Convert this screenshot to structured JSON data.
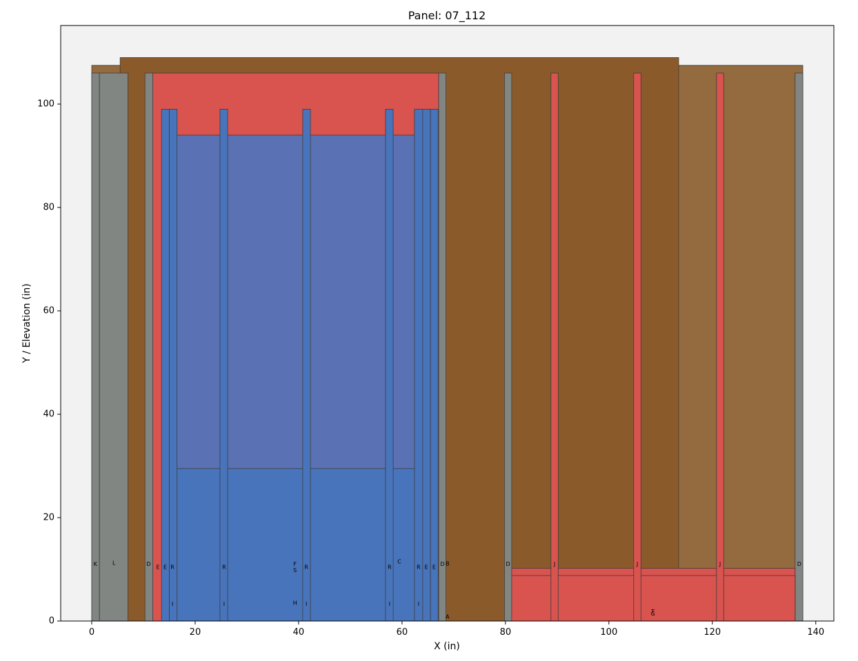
{
  "chart_data": {
    "type": "rectangles",
    "title": "Panel: 07_112",
    "xlabel": "X (in)",
    "ylabel": "Y / Elevation (in)",
    "xlim": [
      -6,
      143.5
    ],
    "ylim": [
      0,
      115.2
    ],
    "xticks": [
      0,
      20,
      40,
      60,
      80,
      100,
      120,
      140
    ],
    "yticks": [
      0,
      20,
      40,
      60,
      80,
      100
    ],
    "grid": false,
    "plot_background": "#f2f2f2",
    "colors": {
      "brown_light": "#946a3f",
      "brown_dark": "#8b5a2b",
      "red": "#d9534f",
      "blue_light": "#5a72b3",
      "blue": "#4874bb",
      "grey": "#828683",
      "edge": "#3c3c3c"
    },
    "rects": [
      {
        "x0": 0,
        "x1": 137.5,
        "y0": 0,
        "y1": 107.5,
        "color": "brown_light"
      },
      {
        "x0": 5.5,
        "x1": 113.5,
        "y0": 0,
        "y1": 109,
        "color": "brown_dark"
      },
      {
        "x0": 11.7,
        "x1": 67.1,
        "y0": 0,
        "y1": 106,
        "color": "red"
      },
      {
        "x0": 16.2,
        "x1": 62.7,
        "y0": 0,
        "y1": 94,
        "color": "blue_light"
      },
      {
        "x0": 16.2,
        "x1": 62.7,
        "y0": 0,
        "y1": 29.5,
        "color": "blue"
      },
      {
        "x0": 13.5,
        "x1": 15,
        "y0": 0,
        "y1": 99,
        "color": "blue"
      },
      {
        "x0": 15,
        "x1": 16.5,
        "y0": 0,
        "y1": 99,
        "color": "blue"
      },
      {
        "x0": 24.8,
        "x1": 26.3,
        "y0": 0,
        "y1": 99,
        "color": "blue"
      },
      {
        "x0": 40.8,
        "x1": 42.3,
        "y0": 0,
        "y1": 99,
        "color": "blue"
      },
      {
        "x0": 56.8,
        "x1": 58.3,
        "y0": 0,
        "y1": 99,
        "color": "blue"
      },
      {
        "x0": 62.4,
        "x1": 64,
        "y0": 0,
        "y1": 99,
        "color": "blue"
      },
      {
        "x0": 64,
        "x1": 65.5,
        "y0": 0,
        "y1": 99,
        "color": "blue"
      },
      {
        "x0": 65.5,
        "x1": 67,
        "y0": 0,
        "y1": 99,
        "color": "blue"
      },
      {
        "x0": 0,
        "x1": 1.5,
        "y0": 0,
        "y1": 106,
        "color": "grey"
      },
      {
        "x0": 1.5,
        "x1": 7,
        "y0": 0,
        "y1": 106,
        "color": "grey"
      },
      {
        "x0": 10.3,
        "x1": 11.8,
        "y0": 0,
        "y1": 106,
        "color": "grey"
      },
      {
        "x0": 67.1,
        "x1": 68.5,
        "y0": 0,
        "y1": 106,
        "color": "grey"
      },
      {
        "x0": 79.8,
        "x1": 81.2,
        "y0": 0,
        "y1": 106,
        "color": "grey"
      },
      {
        "x0": 136,
        "x1": 137.5,
        "y0": 0,
        "y1": 106,
        "color": "grey"
      },
      {
        "x0": 81.2,
        "x1": 136,
        "y0": 0,
        "y1": 10.2,
        "color": "red"
      },
      {
        "x0": 81.2,
        "x1": 136,
        "y0": 0,
        "y1": 8.8,
        "color": "red"
      },
      {
        "x0": 88.8,
        "x1": 90.2,
        "y0": 0,
        "y1": 106,
        "color": "red"
      },
      {
        "x0": 104.8,
        "x1": 106.2,
        "y0": 0,
        "y1": 106,
        "color": "red"
      },
      {
        "x0": 120.8,
        "x1": 122.2,
        "y0": 0,
        "y1": 106,
        "color": "red"
      }
    ],
    "annotations": [
      {
        "text": "K",
        "x": 0.7,
        "y": 11
      },
      {
        "text": "L",
        "x": 4.3,
        "y": 11.2
      },
      {
        "text": "D",
        "x": 11,
        "y": 11
      },
      {
        "text": "E",
        "x": 12.8,
        "y": 10.4
      },
      {
        "text": "E",
        "x": 14.2,
        "y": 10.4
      },
      {
        "text": "R",
        "x": 15.6,
        "y": 10.4
      },
      {
        "text": "R",
        "x": 25.6,
        "y": 10.4
      },
      {
        "text": "I",
        "x": 15.6,
        "y": 3.3
      },
      {
        "text": "I",
        "x": 25.6,
        "y": 3.3
      },
      {
        "text": "F",
        "x": 39.3,
        "y": 11
      },
      {
        "text": "S",
        "x": 39.3,
        "y": 9.8
      },
      {
        "text": "R",
        "x": 41.5,
        "y": 10.4
      },
      {
        "text": "H",
        "x": 39.3,
        "y": 3.5
      },
      {
        "text": "I",
        "x": 41.5,
        "y": 3.3
      },
      {
        "text": "R",
        "x": 57.6,
        "y": 10.4
      },
      {
        "text": "I",
        "x": 57.6,
        "y": 3.3
      },
      {
        "text": "C",
        "x": 59.5,
        "y": 11.5
      },
      {
        "text": "R",
        "x": 63.2,
        "y": 10.4
      },
      {
        "text": "I",
        "x": 63.2,
        "y": 3.3
      },
      {
        "text": "E",
        "x": 64.7,
        "y": 10.4
      },
      {
        "text": "E",
        "x": 66.2,
        "y": 10.4
      },
      {
        "text": "D",
        "x": 67.8,
        "y": 11
      },
      {
        "text": "B",
        "x": 68.8,
        "y": 11.1
      },
      {
        "text": "A",
        "x": 68.8,
        "y": 0.8
      },
      {
        "text": "D",
        "x": 80.5,
        "y": 11
      },
      {
        "text": "J",
        "x": 89.5,
        "y": 11
      },
      {
        "text": "J",
        "x": 105.5,
        "y": 11
      },
      {
        "text": "J",
        "x": 121.5,
        "y": 11
      },
      {
        "text": "D",
        "x": 136.8,
        "y": 11
      },
      {
        "text": "T",
        "x": 108.5,
        "y": 1.8
      },
      {
        "text": "G",
        "x": 108.5,
        "y": 1.4
      }
    ]
  }
}
